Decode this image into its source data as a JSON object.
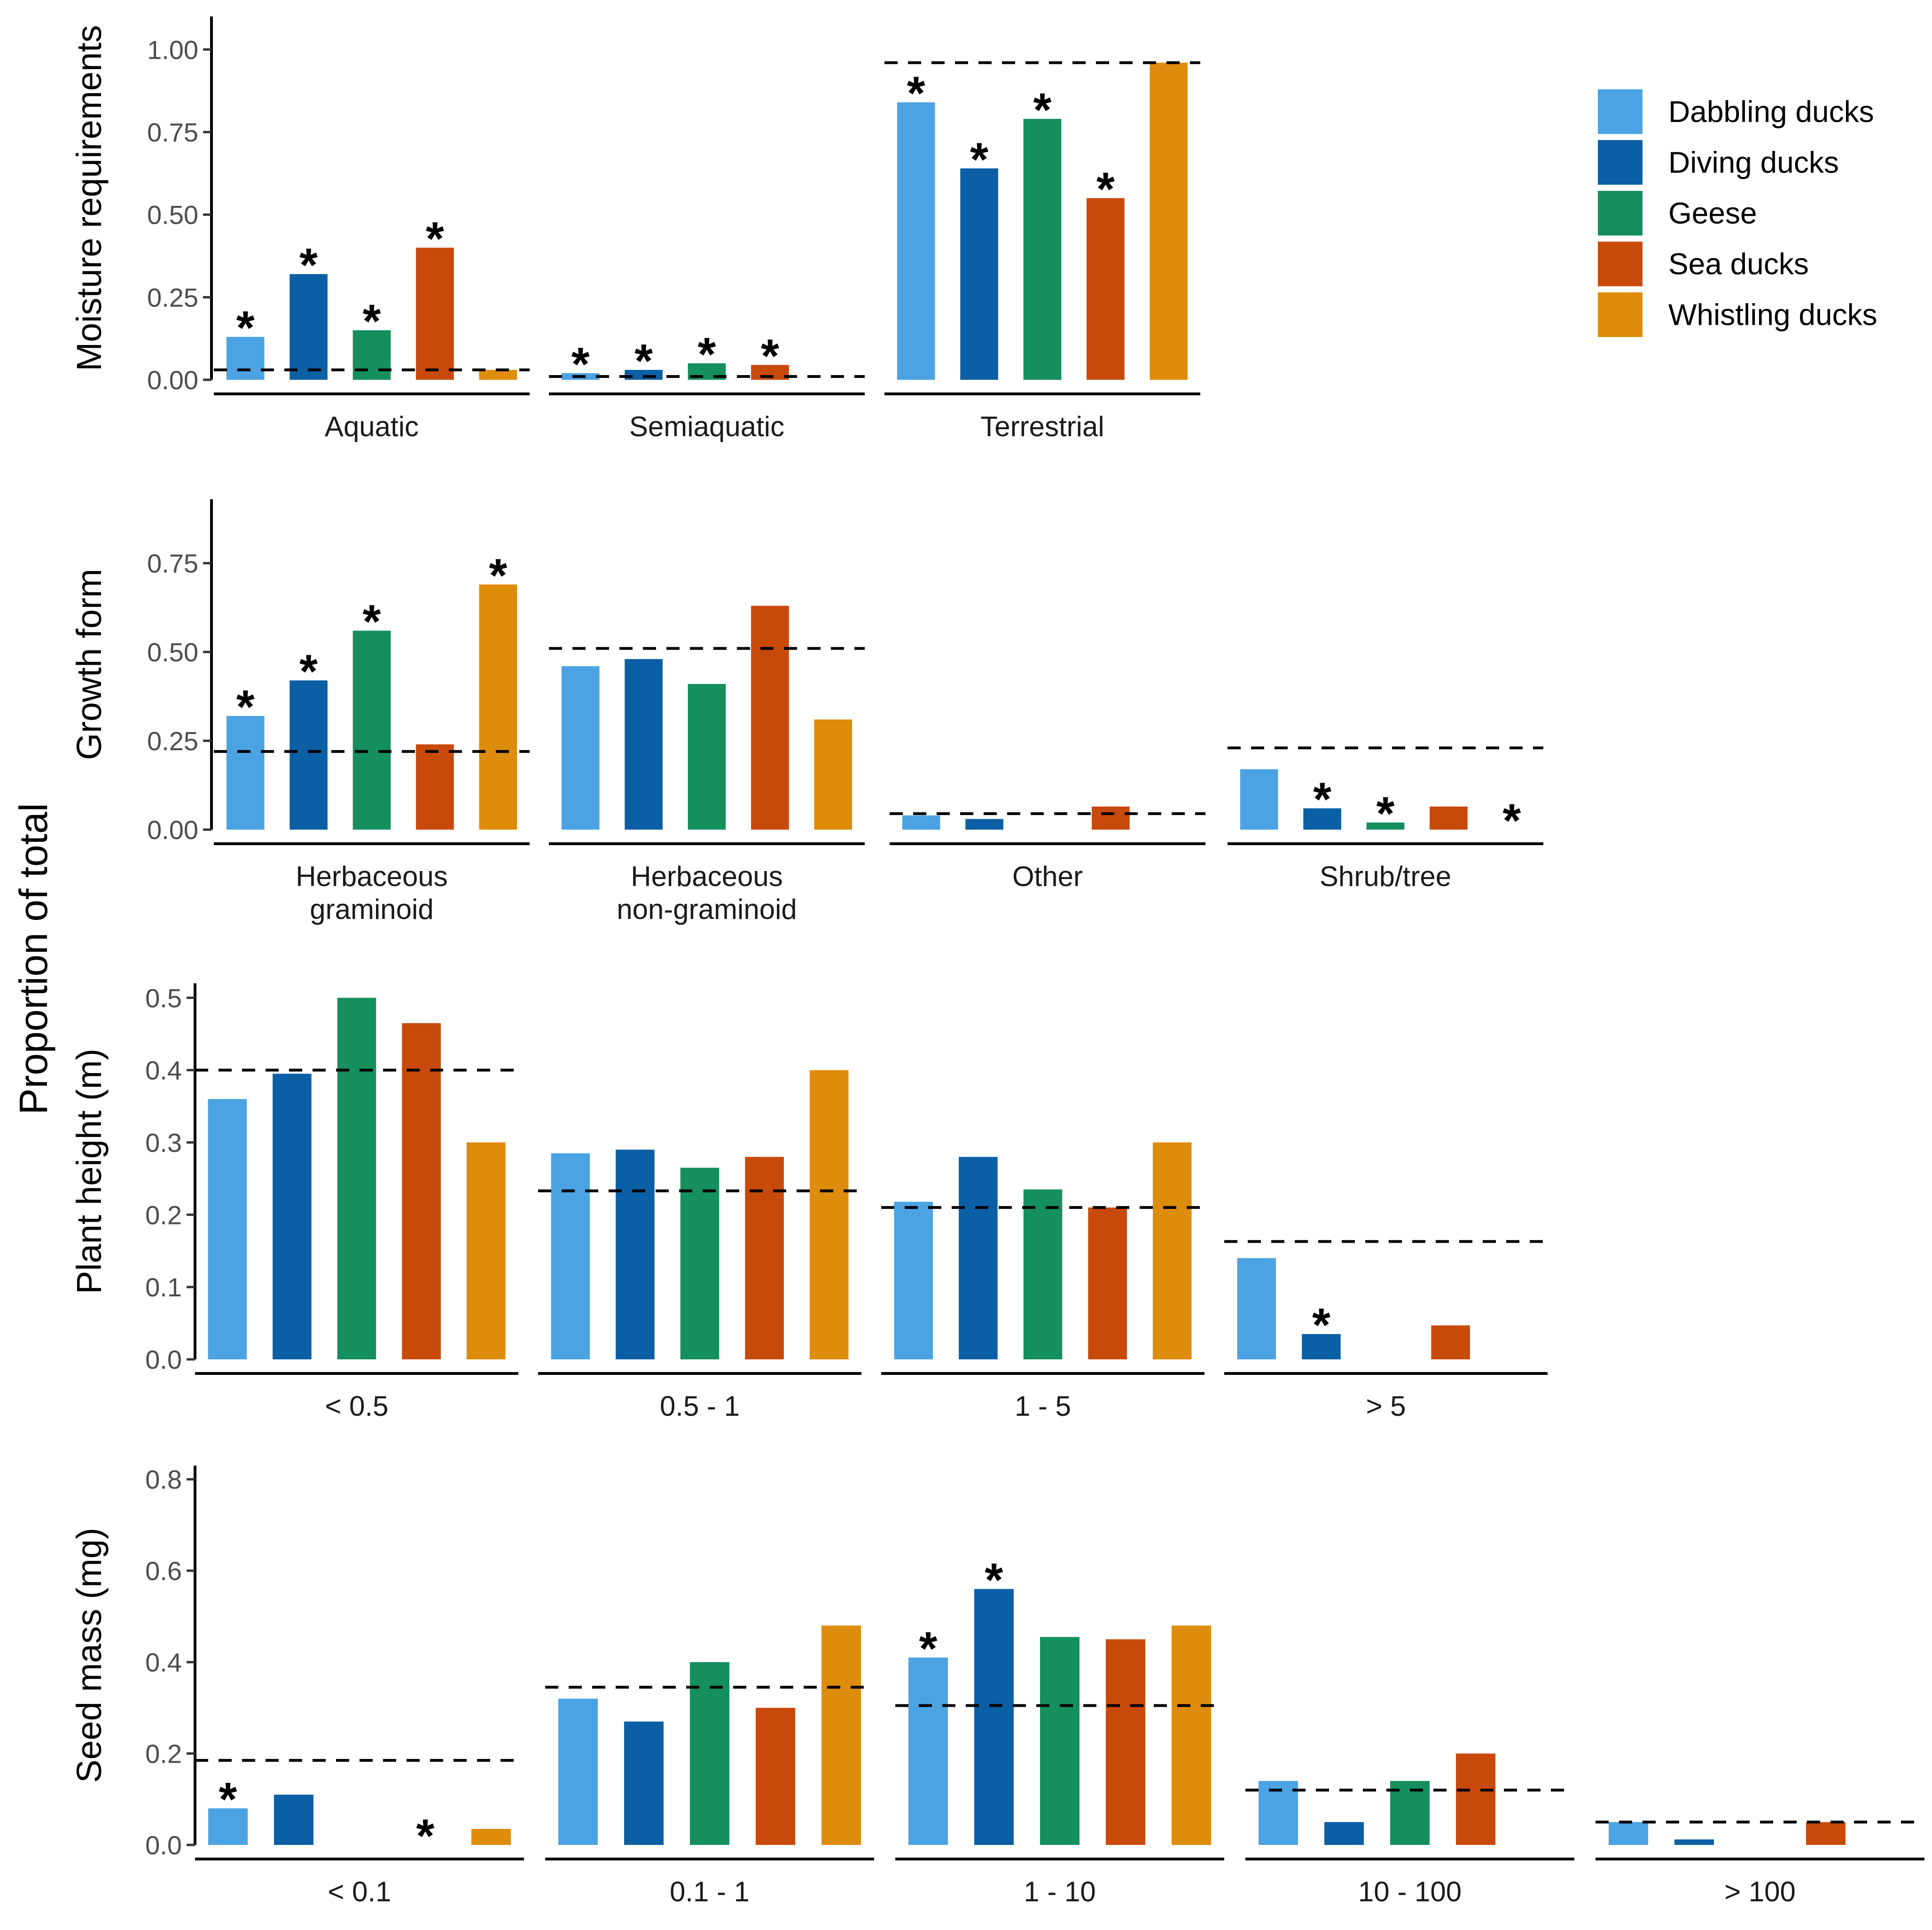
{
  "chart_data": {
    "type": "bar",
    "ylabel": "Proportion of total",
    "legend": {
      "position": "top-right",
      "entries": [
        {
          "name": "Dabbling ducks",
          "color": "#4BA3E3"
        },
        {
          "name": "Diving ducks",
          "color": "#0B5FA5"
        },
        {
          "name": "Geese",
          "color": "#148F5D"
        },
        {
          "name": "Sea ducks",
          "color": "#C84A0B"
        },
        {
          "name": "Whistling ducks",
          "color": "#DE8C0C"
        }
      ]
    },
    "reference_line": "dashed",
    "significance_marker": "*",
    "panels": [
      {
        "title": "Moisture requirements",
        "ylim": [
          0,
          1.1
        ],
        "yticks": [
          0,
          0.25,
          0.5,
          0.75,
          1.0
        ],
        "yticklabels": [
          "0.00",
          "0.25",
          "0.50",
          "0.75",
          "1.00"
        ],
        "facets": [
          {
            "label": [
              "Aquatic"
            ],
            "values": [
              0.13,
              0.32,
              0.15,
              0.4,
              0.03
            ],
            "significant": [
              true,
              true,
              true,
              true,
              false
            ],
            "reference": 0.03
          },
          {
            "label": [
              "Semiaquatic"
            ],
            "values": [
              0.02,
              0.03,
              0.05,
              0.045,
              0
            ],
            "significant": [
              true,
              true,
              true,
              true,
              false
            ],
            "reference": 0.01
          },
          {
            "label": [
              "Terrestrial"
            ],
            "values": [
              0.84,
              0.64,
              0.79,
              0.55,
              0.96
            ],
            "significant": [
              true,
              true,
              true,
              true,
              false
            ],
            "reference": 0.96
          }
        ]
      },
      {
        "title": "Growth form",
        "ylim": [
          0,
          0.93
        ],
        "yticks": [
          0,
          0.25,
          0.5,
          0.75
        ],
        "yticklabels": [
          "0.00",
          "0.25",
          "0.50",
          "0.75"
        ],
        "facets": [
          {
            "label": [
              "Herbaceous",
              "graminoid"
            ],
            "values": [
              0.32,
              0.42,
              0.56,
              0.24,
              0.69
            ],
            "significant": [
              true,
              true,
              true,
              false,
              true
            ],
            "reference": 0.22
          },
          {
            "label": [
              "Herbaceous",
              "non-graminoid"
            ],
            "values": [
              0.46,
              0.48,
              0.41,
              0.63,
              0.31
            ],
            "significant": [
              false,
              false,
              false,
              false,
              false
            ],
            "reference": 0.51
          },
          {
            "label": [
              "Other"
            ],
            "values": [
              0.04,
              0.03,
              0,
              0.065,
              0
            ],
            "significant": [
              false,
              false,
              false,
              false,
              false
            ],
            "reference": 0.045
          },
          {
            "label": [
              "Shrub/tree"
            ],
            "values": [
              0.17,
              0.06,
              0.02,
              0.065,
              0
            ],
            "significant": [
              false,
              true,
              true,
              false,
              true
            ],
            "reference": 0.23
          }
        ]
      },
      {
        "title": "Plant height (m)",
        "ylim": [
          0,
          0.52
        ],
        "yticks": [
          0,
          0.1,
          0.2,
          0.3,
          0.4,
          0.5
        ],
        "yticklabels": [
          "0.0",
          "0.1",
          "0.2",
          "0.3",
          "0.4",
          "0.5"
        ],
        "facets": [
          {
            "label": [
              "< 0.5"
            ],
            "values": [
              0.36,
              0.395,
              0.5,
              0.465,
              0.3
            ],
            "significant": [
              false,
              false,
              false,
              false,
              false
            ],
            "reference": 0.4
          },
          {
            "label": [
              "0.5 - 1"
            ],
            "values": [
              0.285,
              0.29,
              0.265,
              0.28,
              0.4
            ],
            "significant": [
              false,
              false,
              false,
              false,
              false
            ],
            "reference": 0.233
          },
          {
            "label": [
              "1 - 5"
            ],
            "values": [
              0.218,
              0.28,
              0.235,
              0.21,
              0.3
            ],
            "significant": [
              false,
              false,
              false,
              false,
              false
            ],
            "reference": 0.21
          },
          {
            "label": [
              "> 5"
            ],
            "values": [
              0.14,
              0.035,
              0,
              0.047,
              0
            ],
            "significant": [
              false,
              true,
              false,
              false,
              false
            ],
            "reference": 0.163
          }
        ]
      },
      {
        "title": "Seed mass (mg)",
        "ylim": [
          0,
          0.83
        ],
        "yticks": [
          0,
          0.2,
          0.4,
          0.6,
          0.8
        ],
        "yticklabels": [
          "0.0",
          "0.2",
          "0.4",
          "0.6",
          "0.8"
        ],
        "facets": [
          {
            "label": [
              "< 0.1"
            ],
            "values": [
              0.08,
              0.11,
              0,
              0,
              0.035
            ],
            "significant": [
              true,
              false,
              false,
              true,
              false
            ],
            "reference": 0.185
          },
          {
            "label": [
              "0.1 - 1"
            ],
            "values": [
              0.32,
              0.27,
              0.4,
              0.3,
              0.48
            ],
            "significant": [
              false,
              false,
              false,
              false,
              false
            ],
            "reference": 0.345
          },
          {
            "label": [
              "1 - 10"
            ],
            "values": [
              0.41,
              0.56,
              0.455,
              0.45,
              0.48
            ],
            "significant": [
              true,
              true,
              false,
              false,
              false
            ],
            "reference": 0.305
          },
          {
            "label": [
              "10 - 100"
            ],
            "values": [
              0.14,
              0.05,
              0.14,
              0.2,
              0
            ],
            "significant": [
              false,
              false,
              false,
              false,
              false
            ],
            "reference": 0.12
          },
          {
            "label": [
              "> 100"
            ],
            "values": [
              0.05,
              0.012,
              0,
              0.05,
              0
            ],
            "significant": [
              false,
              false,
              false,
              false,
              false
            ],
            "reference": 0.05
          }
        ]
      }
    ]
  }
}
